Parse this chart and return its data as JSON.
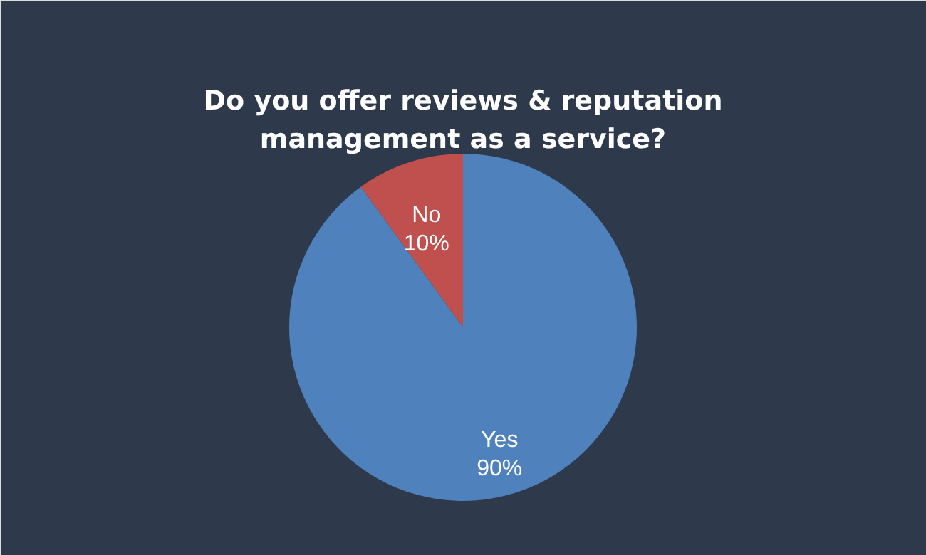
{
  "chart_data": {
    "type": "pie",
    "title": "Do you offer reviews & reputation management as a service?",
    "categories": [
      "Yes",
      "No"
    ],
    "values": [
      90,
      10
    ],
    "colors": [
      "#4f81bd",
      "#c0504d"
    ],
    "value_labels": [
      "90%",
      "10%"
    ],
    "legend": false
  }
}
